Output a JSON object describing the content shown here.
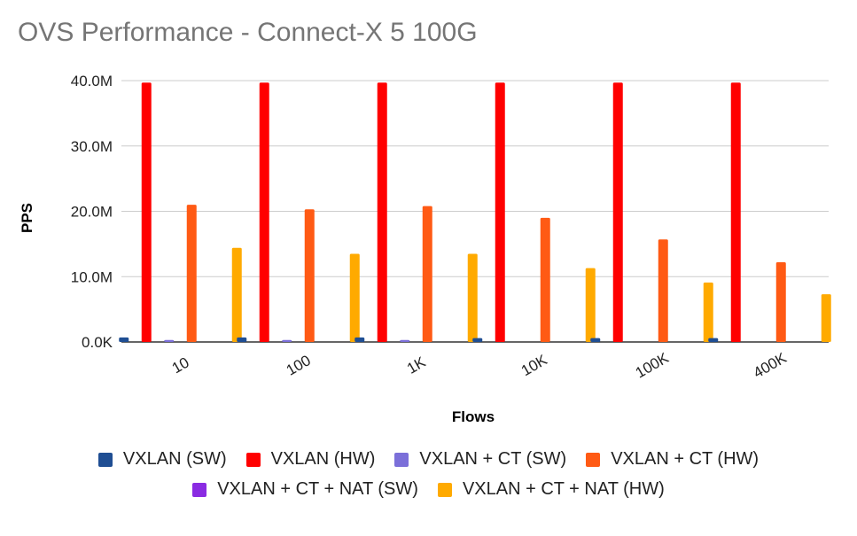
{
  "chart_data": {
    "type": "bar",
    "title": "OVS Performance - Connect-X 5 100G",
    "xlabel": "Flows",
    "ylabel": "PPS",
    "categories": [
      "10",
      "100",
      "1K",
      "10K",
      "100K",
      "400K"
    ],
    "y_ticks": [
      {
        "value": 0,
        "label": "0.0K"
      },
      {
        "value": 10000000,
        "label": "10.0M"
      },
      {
        "value": 20000000,
        "label": "20.0M"
      },
      {
        "value": 30000000,
        "label": "30.0M"
      },
      {
        "value": 40000000,
        "label": "40.0M"
      }
    ],
    "ylim": [
      0,
      40000000
    ],
    "grid": true,
    "legend_position": "bottom",
    "series": [
      {
        "name": "VXLAN (SW)",
        "color": "#1f4e93",
        "values": [
          700000,
          700000,
          700000,
          600000,
          600000,
          600000
        ]
      },
      {
        "name": "VXLAN (HW)",
        "color": "#ff0000",
        "values": [
          39700000,
          39700000,
          39700000,
          39700000,
          39700000,
          39700000
        ]
      },
      {
        "name": "VXLAN + CT (SW)",
        "color": "#7b6fd9",
        "values": [
          300000,
          300000,
          300000,
          0,
          0,
          0
        ]
      },
      {
        "name": "VXLAN + CT (HW)",
        "color": "#ff5a14",
        "values": [
          21000000,
          20300000,
          20800000,
          19000000,
          15700000,
          12200000
        ]
      },
      {
        "name": "VXLAN + CT + NAT (SW)",
        "color": "#8a2be2",
        "values": [
          0,
          0,
          0,
          0,
          0,
          0
        ]
      },
      {
        "name": "VXLAN + CT + NAT (HW)",
        "color": "#ffaa00",
        "values": [
          14400000,
          13500000,
          13500000,
          11300000,
          9100000,
          7300000
        ]
      }
    ]
  }
}
